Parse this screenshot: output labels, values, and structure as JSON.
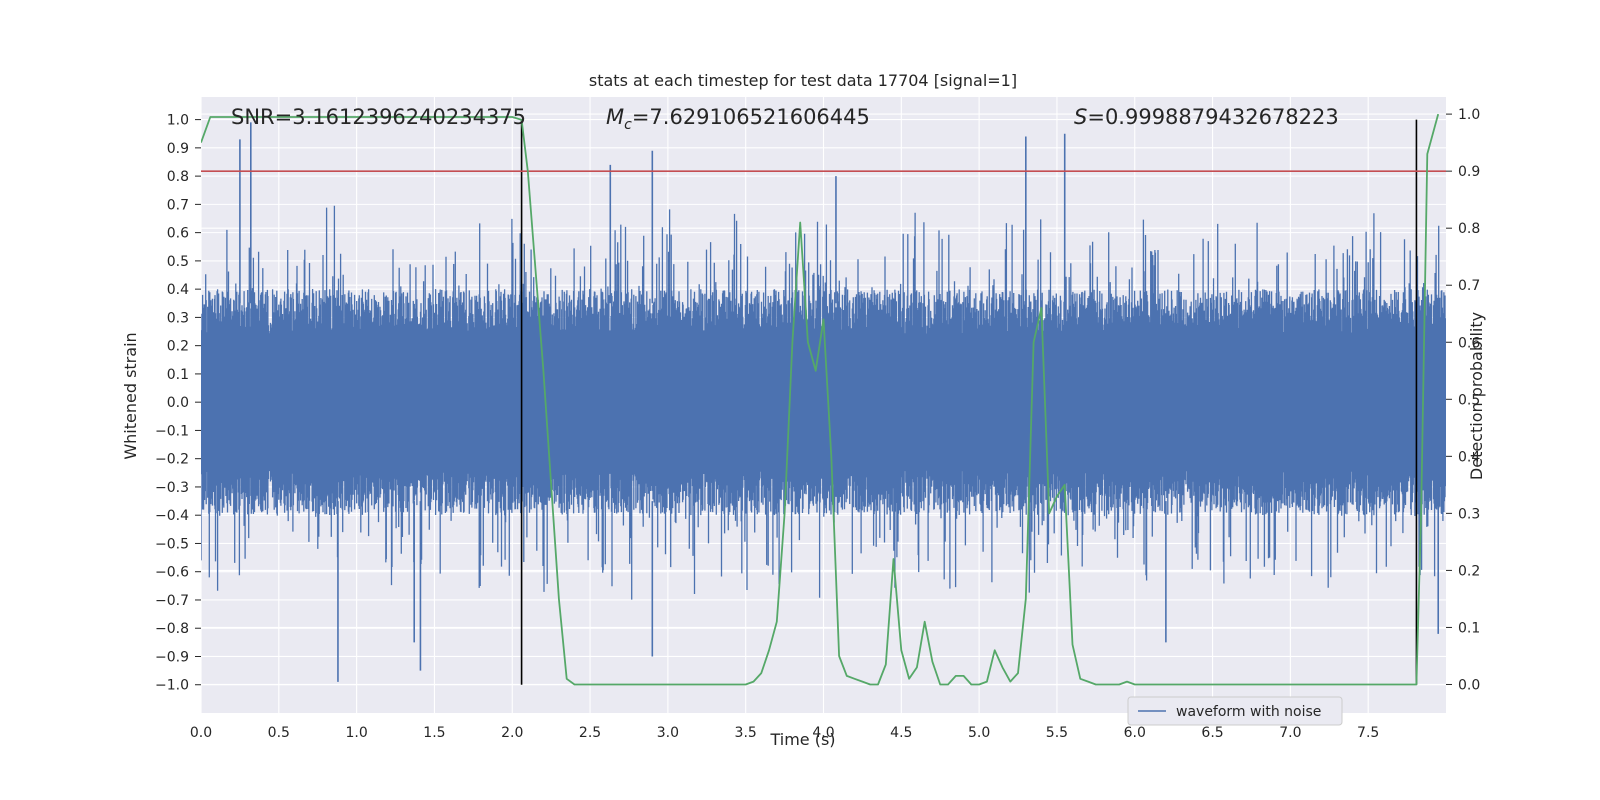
{
  "chart_data": {
    "type": "line",
    "title": "stats at each timestep for test data 17704 [signal=1]",
    "xlabel": "Time (s)",
    "ylabel_left": "Whitened strain",
    "ylabel_right": "Detection probability",
    "xlim": [
      0.0,
      8.0
    ],
    "ylim_left": [
      -1.1,
      1.08
    ],
    "ylim_right": [
      -0.05,
      1.03
    ],
    "x_ticks": [
      "0.0",
      "0.5",
      "1.0",
      "1.5",
      "2.0",
      "2.5",
      "3.0",
      "3.5",
      "4.0",
      "4.5",
      "5.0",
      "5.5",
      "6.0",
      "6.5",
      "7.0",
      "7.5"
    ],
    "y_ticks_left": [
      "1.0",
      "0.9",
      "0.8",
      "0.7",
      "0.6",
      "0.5",
      "0.4",
      "0.3",
      "0.2",
      "0.1",
      "0.0",
      "−0.1",
      "−0.2",
      "−0.3",
      "−0.4",
      "−0.5",
      "−0.6",
      "−0.7",
      "−0.8",
      "−0.9",
      "−1.0"
    ],
    "y_ticks_right": [
      "1.0",
      "0.9",
      "0.8",
      "0.7",
      "0.6",
      "0.5",
      "0.4",
      "0.3",
      "0.2",
      "0.1",
      "0.0"
    ],
    "annotations": {
      "snr": "SNR=3.1612396240234375",
      "mc_symbol": "M",
      "mc_sub": "c",
      "mc_value": "=7.629106521606445",
      "s_symbol": "S",
      "s_value": "=0.9998879432678223"
    },
    "threshold_right": 0.9,
    "vertical_markers": [
      2.06,
      7.81
    ],
    "legend": {
      "label": "waveform with noise",
      "position": "lower-right"
    },
    "series": [
      {
        "name": "waveform with noise",
        "axis": "left",
        "color": "#4c72b0",
        "description": "dense whitened strain samples, bulk amplitude about ±0.4 with spikes to about ±1.0",
        "spikes": [
          {
            "x": 0.25,
            "y": 0.93
          },
          {
            "x": 0.32,
            "y": 0.99
          },
          {
            "x": 0.88,
            "y": -0.99
          },
          {
            "x": 1.37,
            "y": -0.85
          },
          {
            "x": 1.41,
            "y": -0.95
          },
          {
            "x": 2.63,
            "y": 0.84
          },
          {
            "x": 2.9,
            "y": 0.89
          },
          {
            "x": 2.9,
            "y": -0.9
          },
          {
            "x": 4.08,
            "y": 0.8
          },
          {
            "x": 5.3,
            "y": 0.94
          },
          {
            "x": 5.55,
            "y": 0.95
          },
          {
            "x": 6.2,
            "y": -0.85
          },
          {
            "x": 7.95,
            "y": -0.82
          }
        ]
      },
      {
        "name": "Detection probability",
        "axis": "right",
        "color": "#55a868",
        "x": [
          0.0,
          0.06,
          0.2,
          0.5,
          1.0,
          1.5,
          2.0,
          2.06,
          2.1,
          2.2,
          2.3,
          2.35,
          2.4,
          2.6,
          2.8,
          3.0,
          3.2,
          3.4,
          3.5,
          3.55,
          3.6,
          3.65,
          3.7,
          3.75,
          3.8,
          3.85,
          3.9,
          3.95,
          4.0,
          4.05,
          4.1,
          4.15,
          4.2,
          4.25,
          4.3,
          4.35,
          4.4,
          4.45,
          4.5,
          4.55,
          4.6,
          4.65,
          4.7,
          4.75,
          4.8,
          4.85,
          4.9,
          4.95,
          5.0,
          5.05,
          5.1,
          5.15,
          5.2,
          5.25,
          5.3,
          5.35,
          5.4,
          5.45,
          5.5,
          5.55,
          5.6,
          5.65,
          5.7,
          5.75,
          5.8,
          5.85,
          5.9,
          5.95,
          6.0,
          6.05,
          6.1,
          6.15,
          6.2,
          6.3,
          6.5,
          7.0,
          7.5,
          7.81,
          7.84,
          7.88,
          7.95
        ],
        "y": [
          0.95,
          0.995,
          0.995,
          0.995,
          0.995,
          0.995,
          0.995,
          0.99,
          0.9,
          0.55,
          0.15,
          0.01,
          0.0,
          0.0,
          0.0,
          0.0,
          0.0,
          0.0,
          0.0,
          0.005,
          0.02,
          0.06,
          0.11,
          0.3,
          0.6,
          0.81,
          0.6,
          0.55,
          0.64,
          0.4,
          0.05,
          0.015,
          0.01,
          0.005,
          0.0,
          0.0,
          0.035,
          0.22,
          0.06,
          0.01,
          0.03,
          0.11,
          0.04,
          0.0,
          0.0,
          0.015,
          0.015,
          0.0,
          0.0,
          0.005,
          0.06,
          0.03,
          0.005,
          0.02,
          0.15,
          0.6,
          0.66,
          0.3,
          0.33,
          0.35,
          0.07,
          0.01,
          0.005,
          0.0,
          0.0,
          0.0,
          0.0,
          0.005,
          0.0,
          0.0,
          0.0,
          0.0,
          0.0,
          0.0,
          0.0,
          0.0,
          0.0,
          0.0,
          0.3,
          0.93,
          1.0
        ]
      }
    ]
  }
}
